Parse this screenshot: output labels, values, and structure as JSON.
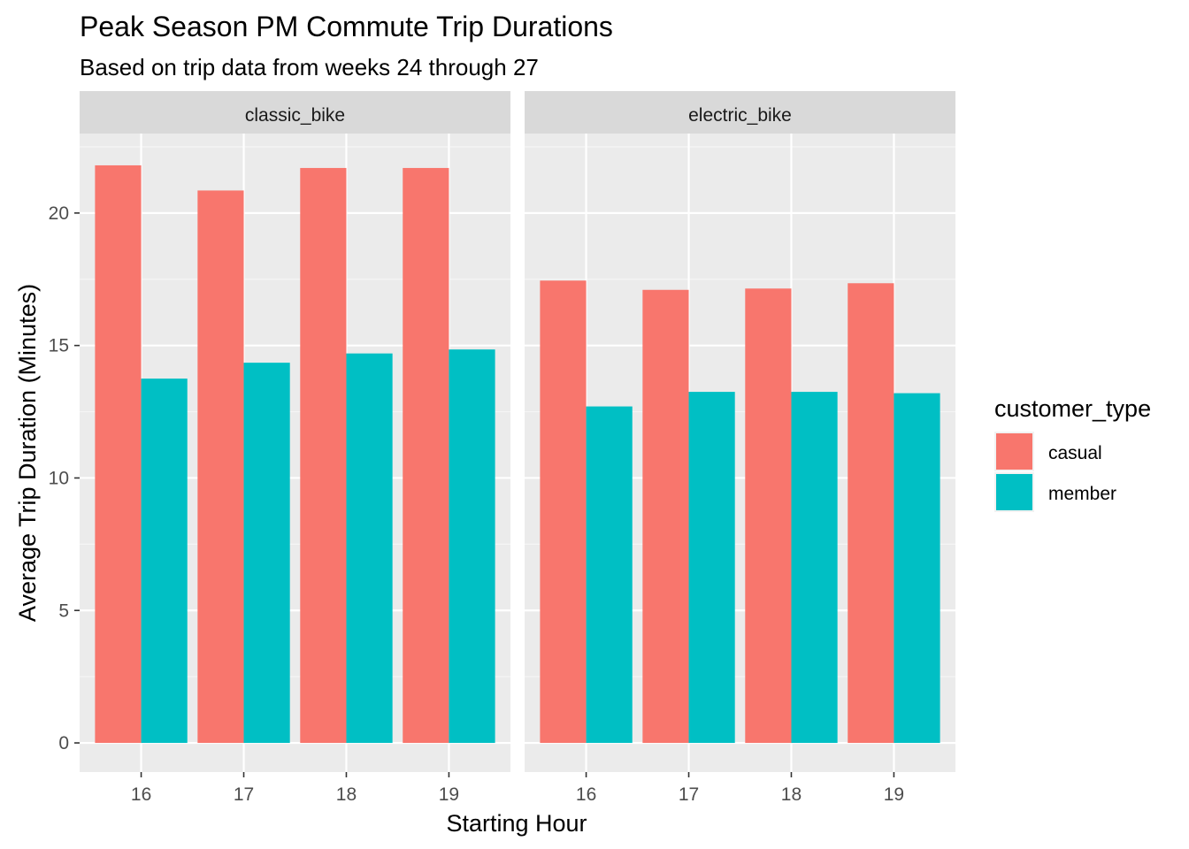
{
  "chart_data": {
    "type": "bar",
    "title": "Peak Season PM Commute Trip Durations",
    "subtitle": "Based on trip data from weeks 24 through 27",
    "xlabel": "Starting Hour",
    "ylabel": "Average Trip Duration (Minutes)",
    "ylim": [
      -1.1,
      23
    ],
    "yticks": [
      0,
      5,
      10,
      15,
      20
    ],
    "y_tick_labels": [
      "0",
      "5",
      "10",
      "15",
      "20"
    ],
    "categories": [
      "16",
      "17",
      "18",
      "19"
    ],
    "grid": true,
    "legend": {
      "title": "customer_type",
      "placement": "right",
      "entries": [
        {
          "name": "casual",
          "color": "#F8766D"
        },
        {
          "name": "member",
          "color": "#00BFC4"
        }
      ]
    },
    "facets": [
      {
        "label": "classic_bike",
        "series": [
          {
            "name": "casual",
            "values": [
              21.8,
              20.85,
              21.7,
              21.7
            ]
          },
          {
            "name": "member",
            "values": [
              13.75,
              14.35,
              14.7,
              14.85
            ]
          }
        ]
      },
      {
        "label": "electric_bike",
        "series": [
          {
            "name": "casual",
            "values": [
              17.45,
              17.1,
              17.15,
              17.35
            ]
          },
          {
            "name": "member",
            "values": [
              12.7,
              13.25,
              13.25,
              13.2
            ]
          }
        ]
      }
    ]
  }
}
